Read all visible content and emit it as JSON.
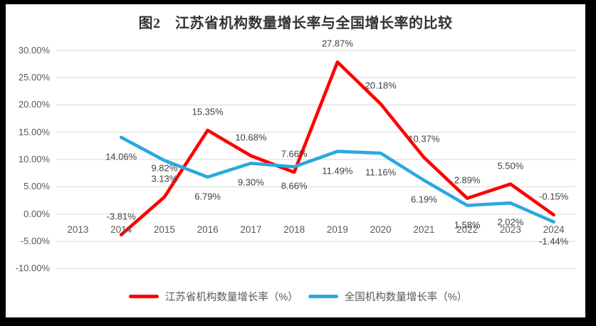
{
  "chart_data": {
    "type": "line",
    "title": "图2　江苏省机构数量增长率与全国增长率的比较",
    "categories": [
      "2013",
      "2014",
      "2015",
      "2016",
      "2017",
      "2018",
      "2019",
      "2020",
      "2021",
      "2022",
      "2023",
      "2024"
    ],
    "series": [
      {
        "name": "江苏省机构数量增长率（%）",
        "color": "#fe0000",
        "values": [
          null,
          -3.81,
          3.13,
          15.35,
          10.68,
          7.66,
          27.87,
          20.18,
          10.37,
          2.89,
          5.5,
          -0.15
        ],
        "labels": [
          "",
          "-3.81%",
          "3.13%",
          "15.35%",
          "10.68%",
          "7.66%",
          "27.87%",
          "20.18%",
          "10.37%",
          "2.89%",
          "5.50%",
          "-0.15%"
        ]
      },
      {
        "name": "全国机构数量增长率（%）",
        "color": "#2ba9df",
        "values": [
          null,
          14.06,
          9.82,
          6.79,
          9.3,
          8.66,
          11.49,
          11.16,
          6.19,
          1.58,
          2.02,
          -1.44
        ],
        "labels": [
          "",
          "14.06%",
          "9.82%",
          "6.79%",
          "9.30%",
          "8.66%",
          "11.49%",
          "11.16%",
          "6.19%",
          "1.58%",
          "2.02%",
          "-1.44%"
        ]
      }
    ],
    "y_axis": [
      {
        "label": "30.00%",
        "value": 30
      },
      {
        "label": "25.00%",
        "value": 25
      },
      {
        "label": "20.00%",
        "value": 20
      },
      {
        "label": "15.00%",
        "value": 15
      },
      {
        "label": "10.00%",
        "value": 10
      },
      {
        "label": "5.00%",
        "value": 5
      },
      {
        "label": "0.00%",
        "value": 0
      },
      {
        "label": "-5.00%",
        "value": -5
      },
      {
        "label": "-10.00%",
        "value": -10
      }
    ],
    "ylim": [
      -10,
      30
    ],
    "xlabel": "",
    "ylabel": "",
    "grid": true,
    "grid_color": "#d9d9d9",
    "legend_position": "bottom"
  }
}
